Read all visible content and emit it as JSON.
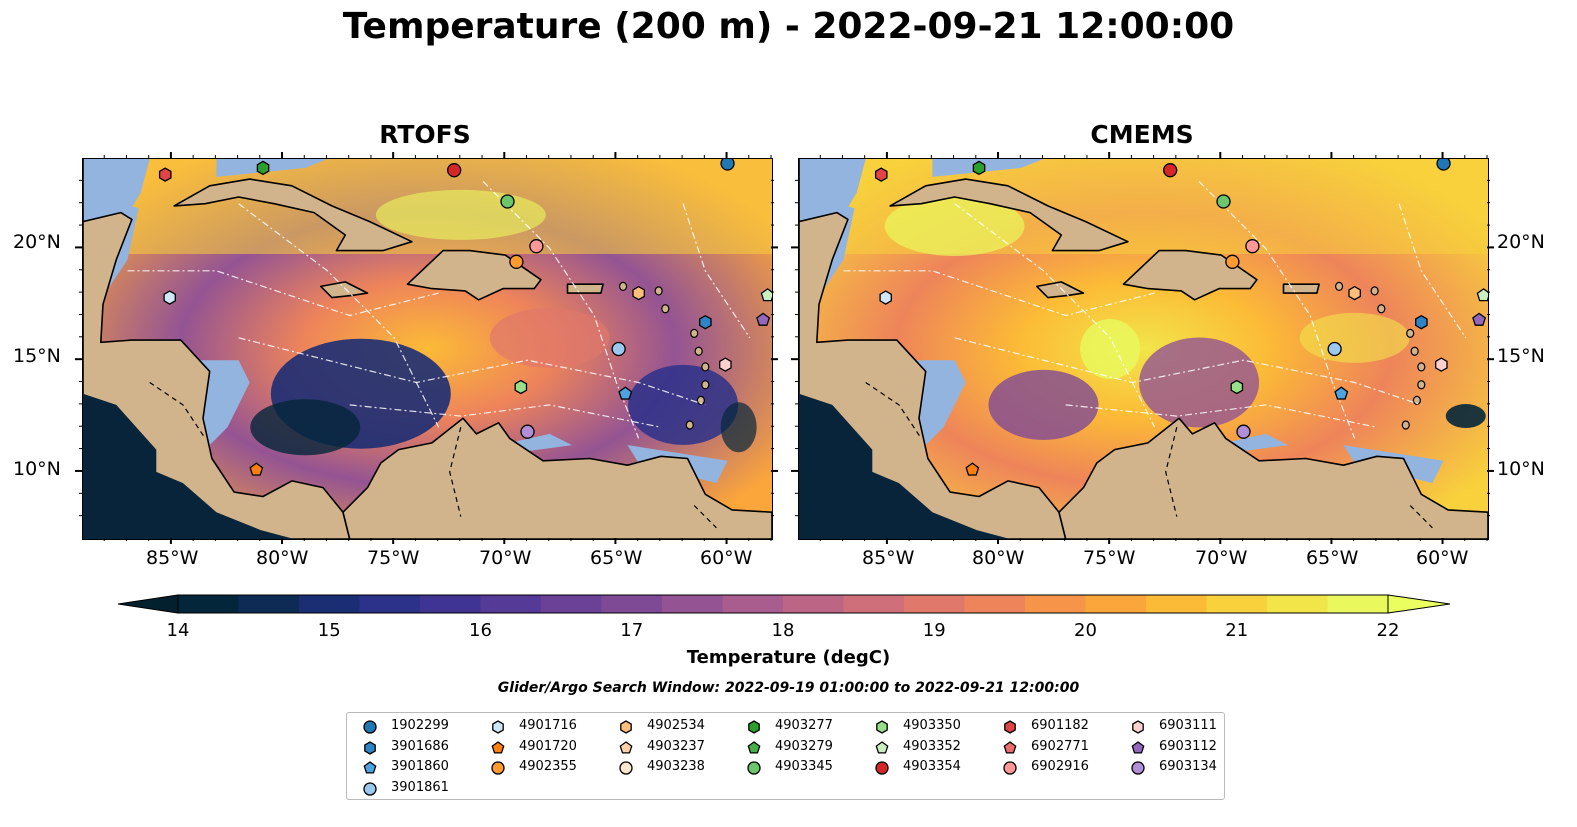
{
  "title": "Temperature (200 m) - 2022-09-21 12:00:00",
  "panels": [
    {
      "title": "RTOFS"
    },
    {
      "title": "CMEMS"
    }
  ],
  "map": {
    "lon_range": [
      -89,
      -58
    ],
    "lat_range": [
      7,
      24
    ],
    "x_ticks": [
      "85°W",
      "80°W",
      "75°W",
      "70°W",
      "65°W",
      "60°W"
    ],
    "y_ticks": [
      "20°N",
      "15°N",
      "10°N"
    ],
    "colors": {
      "land": "#d2b48c",
      "shelf": "#94b4e0",
      "deep": "#08243a",
      "outline": "#000000",
      "contour": "#ffffff"
    }
  },
  "colorbar": {
    "label": "Temperature (degC)",
    "ticks": [
      "14",
      "15",
      "16",
      "17",
      "18",
      "19",
      "20",
      "21",
      "22"
    ],
    "min": 14,
    "max": 22,
    "extend": "both",
    "colors": [
      "#04263a",
      "#0d2b55",
      "#1c2e73",
      "#2c3189",
      "#3f3493",
      "#553a98",
      "#6a4197",
      "#7f4a95",
      "#945493",
      "#a95d8e",
      "#bc6585",
      "#cf6f79",
      "#e0786b",
      "#ee845a",
      "#f69449",
      "#fba63b",
      "#fcbb36",
      "#f8d13c",
      "#f2e54a",
      "#e9f85d"
    ],
    "extend_low": "#03202f",
    "extend_high": "#eaff5f"
  },
  "search_window": "Glider/Argo Search Window: 2022-09-19 01:00:00 to 2022-09-21 12:00:00",
  "legend": {
    "items": [
      {
        "label": "1902299",
        "color": "#1f77b4",
        "marker": "circle"
      },
      {
        "label": "3901686",
        "color": "#2e84c4",
        "marker": "hexagon"
      },
      {
        "label": "3901860",
        "color": "#4da3df",
        "marker": "pentagon"
      },
      {
        "label": "3901861",
        "color": "#9ac8ee",
        "marker": "circle"
      },
      {
        "label": "4901716",
        "color": "#cfe8f8",
        "marker": "hexagon"
      },
      {
        "label": "4901720",
        "color": "#ff7f0e",
        "marker": "pentagon"
      },
      {
        "label": "4902355",
        "color": "#ff9a2e",
        "marker": "circle"
      },
      {
        "label": "4902534",
        "color": "#ffbe7a",
        "marker": "hexagon"
      },
      {
        "label": "4903237",
        "color": "#ffd3a5",
        "marker": "pentagon"
      },
      {
        "label": "4903238",
        "color": "#ffe6cc",
        "marker": "circle"
      },
      {
        "label": "4903277",
        "color": "#2ca02c",
        "marker": "hexagon"
      },
      {
        "label": "4903279",
        "color": "#45b045",
        "marker": "pentagon"
      },
      {
        "label": "4903345",
        "color": "#6cc66c",
        "marker": "circle"
      },
      {
        "label": "4903350",
        "color": "#98df8a",
        "marker": "hexagon"
      },
      {
        "label": "4903352",
        "color": "#cbf0c0",
        "marker": "pentagon"
      },
      {
        "label": "4903354",
        "color": "#d62728",
        "marker": "circle"
      },
      {
        "label": "6901182",
        "color": "#e04446",
        "marker": "hexagon"
      },
      {
        "label": "6902771",
        "color": "#ec6b6b",
        "marker": "pentagon"
      },
      {
        "label": "6902916",
        "color": "#ff9896",
        "marker": "circle"
      },
      {
        "label": "6903111",
        "color": "#ffd0d0",
        "marker": "hexagon"
      },
      {
        "label": "6903112",
        "color": "#9467bd",
        "marker": "pentagon"
      },
      {
        "label": "6903134",
        "color": "#b08fd8",
        "marker": "circle"
      }
    ]
  },
  "floats": [
    {
      "label": "6901182",
      "lon": -85.3,
      "lat": 23.3
    },
    {
      "label": "4903277",
      "lon": -80.9,
      "lat": 23.6
    },
    {
      "label": "4903354",
      "lon": -72.3,
      "lat": 23.5
    },
    {
      "label": "1902299",
      "lon": -60.0,
      "lat": 23.8
    },
    {
      "label": "4903345",
      "lon": -69.9,
      "lat": 22.1
    },
    {
      "label": "6902916",
      "lon": -68.6,
      "lat": 20.1
    },
    {
      "label": "4902355",
      "lon": -69.5,
      "lat": 19.4
    },
    {
      "label": "4901716",
      "lon": -85.1,
      "lat": 17.8
    },
    {
      "label": "4902534",
      "lon": -64.0,
      "lat": 18.0
    },
    {
      "label": "4903352",
      "lon": -58.2,
      "lat": 17.9
    },
    {
      "label": "3901686",
      "lon": -61.0,
      "lat": 16.7
    },
    {
      "label": "6903112",
      "lon": -58.4,
      "lat": 16.8
    },
    {
      "label": "3901861",
      "lon": -64.9,
      "lat": 15.5
    },
    {
      "label": "6903111",
      "lon": -60.1,
      "lat": 14.8
    },
    {
      "label": "4903350",
      "lon": -69.3,
      "lat": 13.8
    },
    {
      "label": "3901860",
      "lon": -64.6,
      "lat": 13.5
    },
    {
      "label": "6903134",
      "lon": -69.0,
      "lat": 11.8
    },
    {
      "label": "4901720",
      "lon": -81.2,
      "lat": 10.1
    }
  ]
}
